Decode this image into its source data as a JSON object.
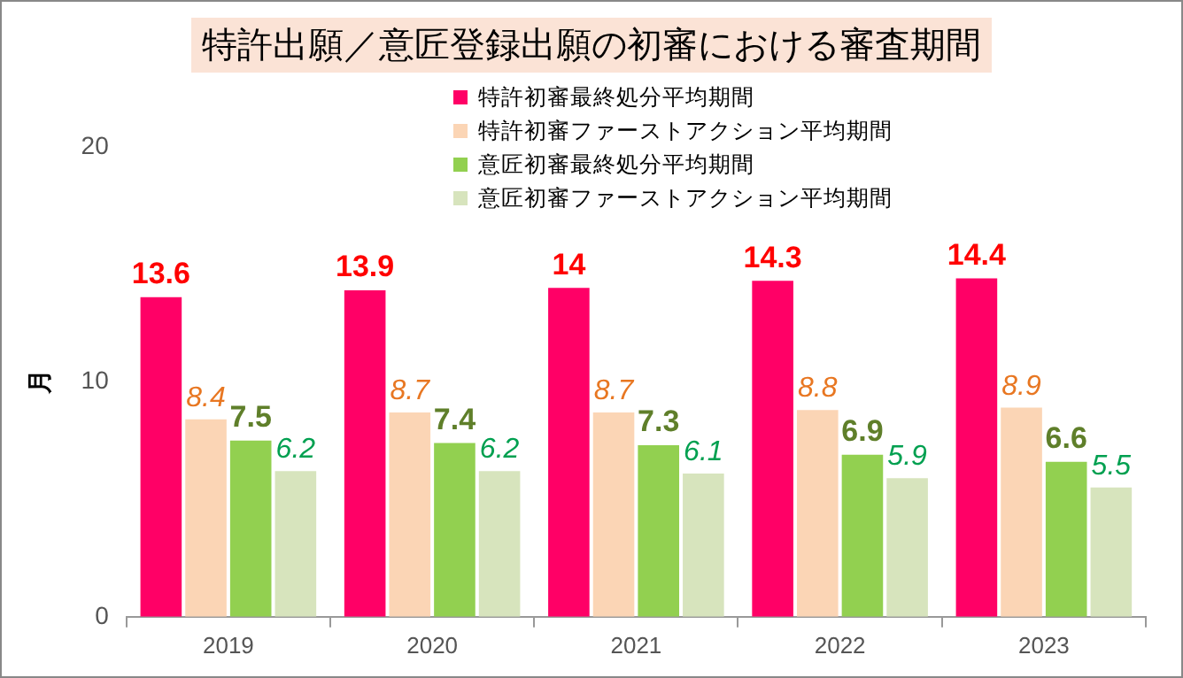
{
  "chart_data": {
    "type": "bar",
    "title": "特許出願／意匠登録出願の初審における審査期間",
    "ylabel": "月",
    "categories": [
      "2019",
      "2020",
      "2021",
      "2022",
      "2023"
    ],
    "series": [
      {
        "name": "特許初審最終処分平均期間",
        "color": "#ff0066",
        "values": [
          13.6,
          13.9,
          14,
          14.3,
          14.4
        ]
      },
      {
        "name": "特許初審ファーストアクション平均期間",
        "color": "#fbd5b5",
        "values": [
          8.4,
          8.7,
          8.7,
          8.8,
          8.9
        ]
      },
      {
        "name": "意匠初審最終処分平均期間",
        "color": "#92d050",
        "values": [
          7.5,
          7.4,
          7.3,
          6.9,
          6.6
        ]
      },
      {
        "name": "意匠初審ファーストアクション平均期間",
        "color": "#d7e4bd",
        "values": [
          6.2,
          6.2,
          6.1,
          5.9,
          5.5
        ]
      }
    ],
    "ylim": [
      0,
      20
    ],
    "yticks": [
      0,
      10,
      20
    ],
    "data_labels": true,
    "legend": "top right",
    "grid": false
  }
}
